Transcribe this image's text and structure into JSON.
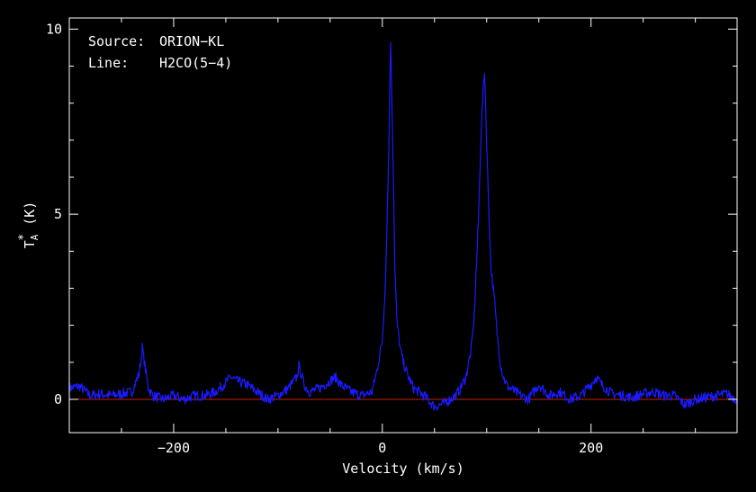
{
  "chart_data": {
    "type": "line",
    "xlabel": "Velocity (km/s)",
    "ylabel_main": "T",
    "ylabel_sub": "A",
    "ylabel_sup": "*",
    "ylabel_unit": " (K)",
    "xlim": [
      -300,
      340
    ],
    "ylim": [
      -0.9,
      10.3
    ],
    "x_ticks": [
      -200,
      0,
      200
    ],
    "x_tick_labels": [
      "−200",
      "0",
      "200"
    ],
    "y_ticks": [
      0,
      5,
      10
    ],
    "y_tick_labels": [
      "0",
      "5",
      "10"
    ],
    "grid": false,
    "annotations": {
      "source_label": "Source:",
      "source_value": "ORION−KL",
      "line_label": "Line:",
      "line_value": "H2CO(5−4)"
    },
    "baseline": 0,
    "colors": {
      "spectrum": "#1a1aff",
      "baseline": "#cc2200",
      "axes": "#ffffff",
      "background": "#000000"
    },
    "series": [
      {
        "x": [
          -300,
          -290,
          -280,
          -270,
          -260,
          -250,
          -240,
          -233,
          -230,
          -227,
          -224,
          -220,
          -210,
          -200,
          -190,
          -180,
          -170,
          -160,
          -150,
          -145,
          -140,
          -130,
          -120,
          -110,
          -100,
          -90,
          -82,
          -80,
          -78,
          -75,
          -70,
          -60,
          -50,
          -45,
          -40,
          -30,
          -20,
          -10,
          -5,
          0,
          3,
          6,
          8,
          10,
          12,
          14,
          17,
          20,
          25,
          30,
          40,
          50,
          60,
          70,
          75,
          80,
          85,
          88,
          92,
          95,
          98,
          101,
          104,
          107,
          110,
          113,
          116,
          120,
          130,
          140,
          150,
          160,
          170,
          180,
          190,
          200,
          205,
          210,
          220,
          230,
          240,
          250,
          260,
          270,
          280,
          290,
          300,
          310,
          320,
          330,
          340
        ],
        "values": [
          0.3,
          0.35,
          0.1,
          0.15,
          0.1,
          0.15,
          0.2,
          0.7,
          1.4,
          0.8,
          0.3,
          0.1,
          0.0,
          0.1,
          0.0,
          0.1,
          0.1,
          0.2,
          0.45,
          0.6,
          0.5,
          0.4,
          0.2,
          0.0,
          0.1,
          0.3,
          0.6,
          0.9,
          0.7,
          0.4,
          0.2,
          0.3,
          0.5,
          0.6,
          0.4,
          0.2,
          0.1,
          0.2,
          0.8,
          1.6,
          3.2,
          6.5,
          9.7,
          7.0,
          3.5,
          2.1,
          1.4,
          1.0,
          0.6,
          0.3,
          0.1,
          -0.2,
          -0.1,
          0.1,
          0.3,
          0.6,
          1.3,
          2.2,
          4.8,
          7.5,
          8.9,
          6.0,
          3.6,
          2.8,
          1.8,
          1.0,
          0.6,
          0.35,
          0.15,
          0.0,
          0.4,
          0.1,
          0.2,
          0.0,
          0.1,
          0.4,
          0.6,
          0.4,
          0.15,
          0.1,
          0.05,
          0.15,
          0.2,
          0.1,
          0.1,
          -0.15,
          0.0,
          0.05,
          0.1,
          0.15,
          0.0
        ]
      }
    ]
  }
}
